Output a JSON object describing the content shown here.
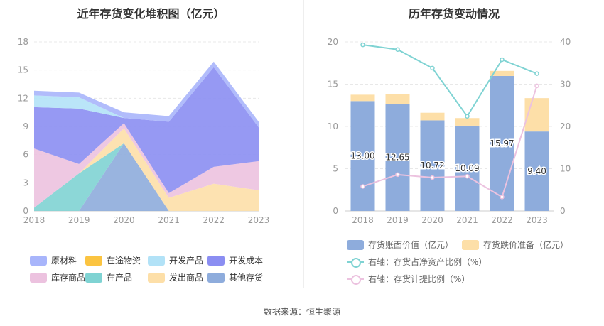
{
  "source": "数据来源：恒生聚源",
  "chart_data": [
    {
      "type": "area",
      "stacked": true,
      "title": "近年存货变化堆积图（亿元）",
      "x": [
        "2018",
        "2019",
        "2020",
        "2021",
        "2022",
        "2023"
      ],
      "ylim": [
        0,
        18
      ],
      "yticks": [
        "0",
        "3",
        "6",
        "9",
        "12",
        "15",
        "18"
      ],
      "grid": true,
      "legend_position": "bottom",
      "series": [
        {
          "name": "其他存货",
          "color": "#8eacdc",
          "values": [
            0,
            0,
            7.2,
            0,
            0,
            0
          ]
        },
        {
          "name": "在产品",
          "color": "#7fd3d3",
          "values": [
            0.35,
            4.0,
            0,
            0,
            0,
            0
          ]
        },
        {
          "name": "发出商品",
          "color": "#fddfa8",
          "values": [
            0,
            0,
            1.6,
            1.4,
            2.9,
            2.2
          ]
        },
        {
          "name": "库存商品",
          "color": "#ecc2df",
          "values": [
            6.3,
            1.0,
            0.55,
            0.5,
            1.8,
            3.1
          ]
        },
        {
          "name": "开发成本",
          "color": "#8b8ef2",
          "values": [
            4.4,
            5.9,
            0.55,
            7.6,
            10.6,
            3.6
          ]
        },
        {
          "name": "开发产品",
          "color": "#b2e2f7",
          "values": [
            1.25,
            1.2,
            0,
            0,
            0,
            0
          ]
        },
        {
          "name": "在途物资",
          "color": "#fbc441",
          "values": [
            0,
            0,
            0,
            0,
            0,
            0
          ]
        },
        {
          "name": "原材料",
          "color": "#a8b5fb",
          "values": [
            0.5,
            0.5,
            0.6,
            0.6,
            0.6,
            0.6
          ]
        }
      ],
      "legend": [
        "原材料",
        "在途物资",
        "开发产品",
        "开发成本",
        "库存商品",
        "在产品",
        "发出商品",
        "其他存货"
      ]
    },
    {
      "type": "bar",
      "stacked": true,
      "title": "历年存货变动情况",
      "categories": [
        "2018",
        "2019",
        "2020",
        "2021",
        "2022",
        "2023"
      ],
      "ylim": [
        0,
        20
      ],
      "yticks": [
        "0",
        "5",
        "10",
        "15",
        "20"
      ],
      "y2lim": [
        0,
        40
      ],
      "y2ticks": [
        "0",
        "10",
        "20",
        "30",
        "40"
      ],
      "grid": true,
      "legend_position": "bottom",
      "bar_labels": [
        "13.00",
        "12.65",
        "10.72",
        "10.09",
        "15.97",
        "9.40"
      ],
      "series": [
        {
          "name": "存货账面价值（亿元）",
          "color": "#8eacdc",
          "values": [
            13.0,
            12.65,
            10.72,
            10.09,
            15.97,
            9.4
          ]
        },
        {
          "name": "存货跌价准备（亿元）",
          "color": "#fddfa8",
          "values": [
            0.75,
            1.2,
            0.9,
            0.9,
            0.6,
            3.95
          ]
        },
        {
          "name": "右轴：存货占净资产比例（%）",
          "color": "#7fd3d3",
          "axis": "right",
          "values": [
            39.3,
            38.2,
            33.8,
            22.4,
            35.8,
            32.5
          ]
        },
        {
          "name": "右轴：存货计提比例（%）",
          "color": "#ecc2df",
          "axis": "right",
          "values": [
            5.8,
            8.6,
            7.9,
            8.2,
            3.3,
            29.6
          ]
        }
      ]
    }
  ]
}
